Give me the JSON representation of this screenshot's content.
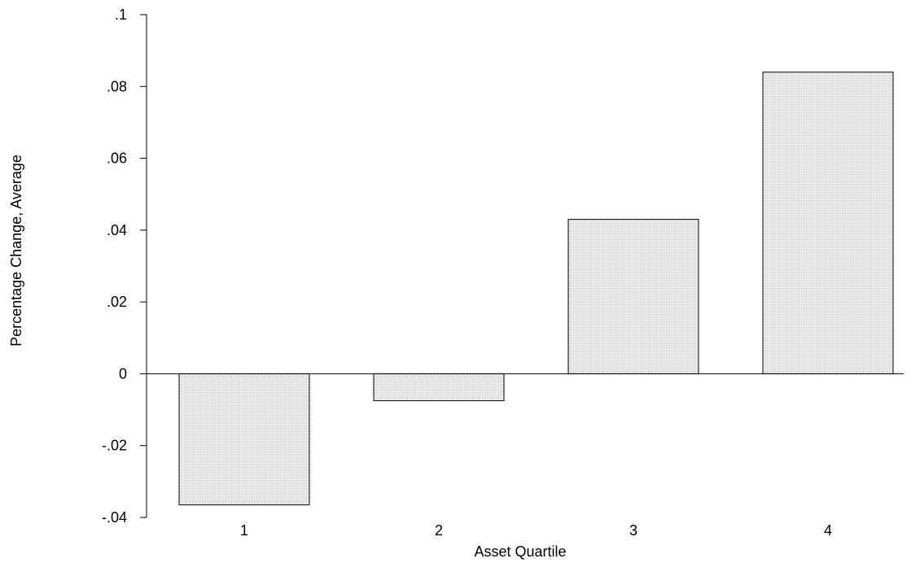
{
  "chart_data": {
    "type": "bar",
    "categories": [
      "1",
      "2",
      "3",
      "4"
    ],
    "values": [
      -0.0365,
      -0.0075,
      0.043,
      0.084
    ],
    "xlabel": "Asset Quartile",
    "ylabel": "Percentage Change, Average",
    "ylim": [
      -0.04,
      0.1
    ],
    "yticks": [
      -0.04,
      -0.02,
      0,
      0.02,
      0.04,
      0.06,
      0.08,
      0.1
    ],
    "ytick_labels": [
      "-.04",
      "-.02",
      "0",
      ".02",
      ".04",
      ".06",
      ".08",
      ".1"
    ],
    "grid": false,
    "legend": "none",
    "colors": {
      "bar_fill": "#e6e6e6",
      "bar_stroke": "#000000"
    }
  }
}
